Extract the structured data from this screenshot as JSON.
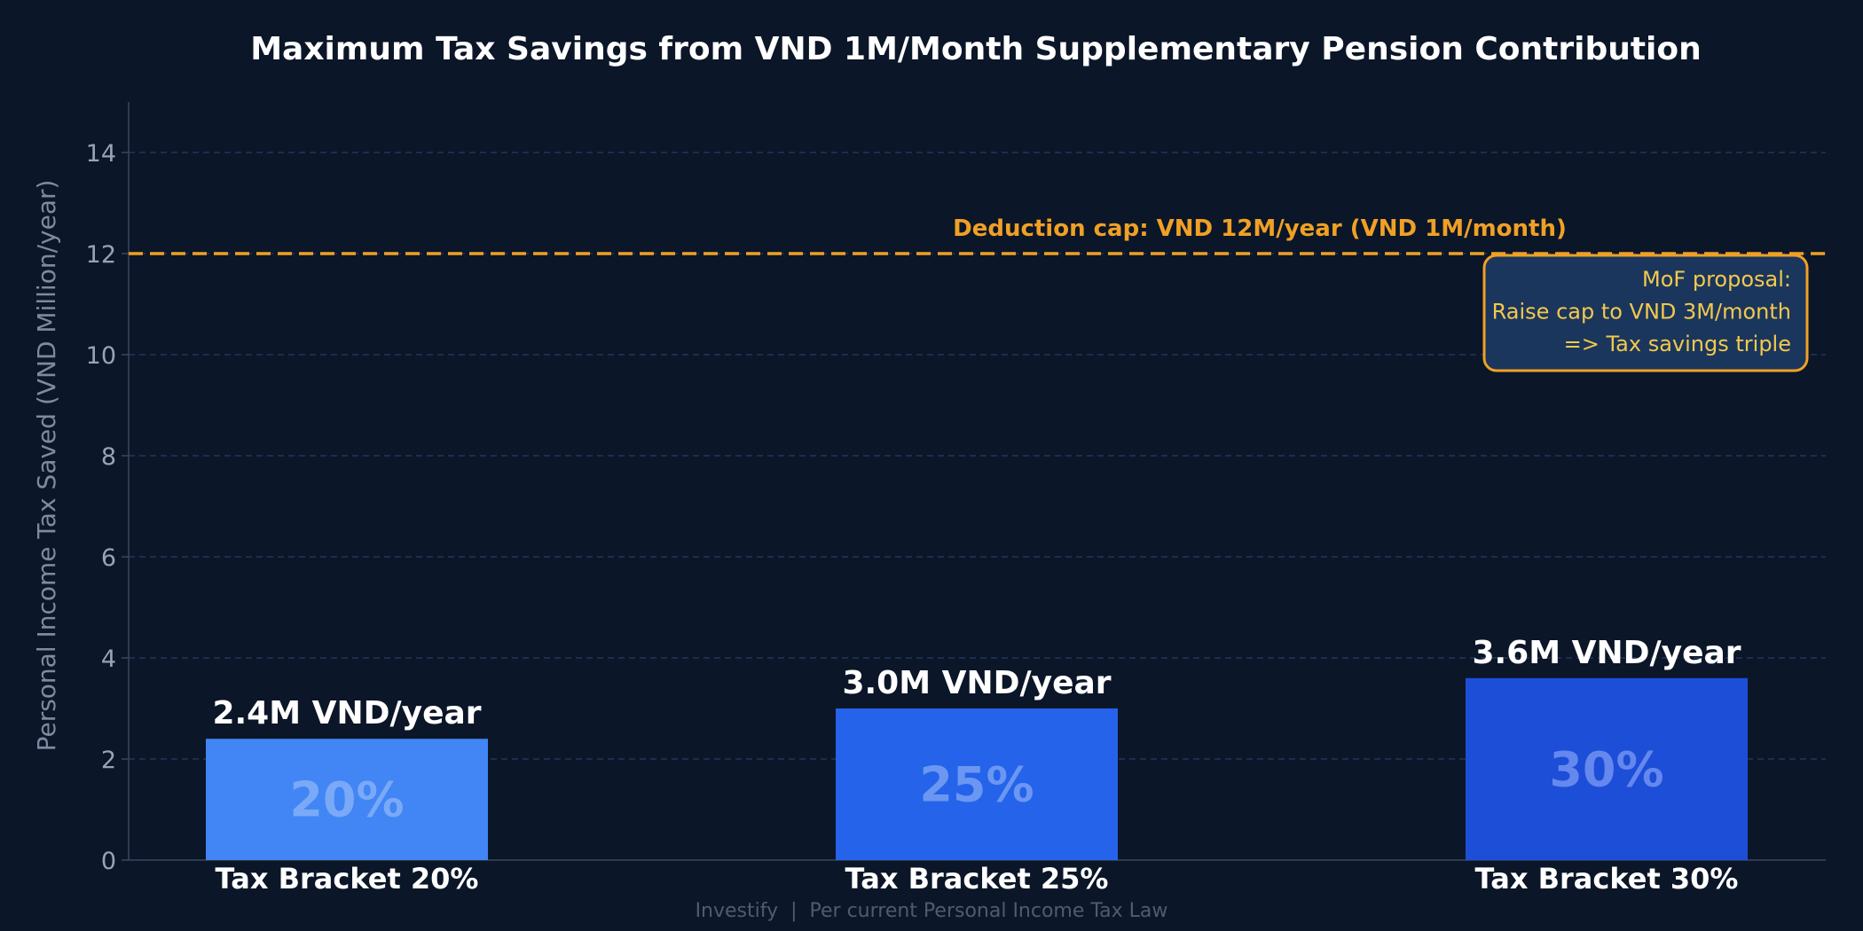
{
  "chart_data": {
    "type": "bar",
    "title": "Maximum Tax Savings from VND 1M/Month Supplementary Pension Contribution",
    "xlabel": "",
    "ylabel": "Personal Income Tax Saved (VND Million/year)",
    "ylim": [
      0,
      15
    ],
    "yticks": [
      0,
      2,
      4,
      6,
      8,
      10,
      12,
      14
    ],
    "grid": true,
    "categories": [
      "Tax Bracket 20%",
      "Tax Bracket 25%",
      "Tax Bracket 30%"
    ],
    "values": [
      2.4,
      3.0,
      3.6
    ],
    "value_labels": [
      "2.4M VND/year",
      "3.0M VND/year",
      "3.6M VND/year"
    ],
    "inbar_labels": [
      "20%",
      "25%",
      "30%"
    ],
    "bar_colors": [
      "#4285f4",
      "#2563eb",
      "#1d4ed8"
    ],
    "inbar_colors": [
      "#7aa9f8",
      "#6b97f2",
      "#6488ee"
    ],
    "reference_line": {
      "value": 12,
      "label": "Deduction cap: VND 12M/year (VND 1M/month)",
      "color": "#f0a025"
    },
    "annotation": {
      "lines": [
        "MoF proposal:",
        "Raise cap to VND 3M/month",
        "=> Tax savings triple"
      ],
      "position": "top-right"
    },
    "footer": "Investify  |  Per current Personal Income Tax Law"
  },
  "colors": {
    "background": "#0b1628",
    "grid": "#26345a",
    "axis": "#3a4760",
    "accent": "#f0a025",
    "note_bg": "#1b365d",
    "note_text": "#f2c94c"
  }
}
